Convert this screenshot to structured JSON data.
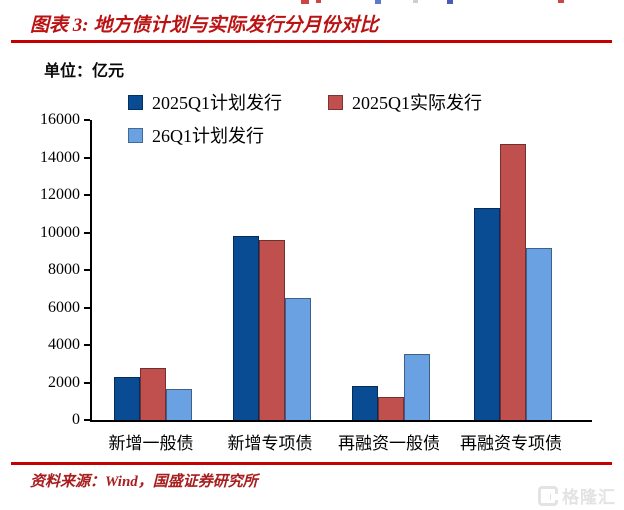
{
  "header": {
    "title": "图表 3: 地方债计划与实际发行分月份对比",
    "unit_label": "单位：亿元"
  },
  "chart_data": {
    "type": "bar",
    "title": "地方债计划与实际发行分月份对比",
    "unit": "亿元",
    "categories": [
      "新增一般债",
      "新增专项债",
      "再融资一般债",
      "再融资专项债"
    ],
    "series": [
      {
        "name": "2025Q1计划发行",
        "color": "#0a4c93",
        "values": [
          2300,
          9800,
          1800,
          11300
        ]
      },
      {
        "name": "2025Q1实际发行",
        "color": "#c0504d",
        "values": [
          2750,
          9600,
          1250,
          14700
        ]
      },
      {
        "name": "26Q1计划发行",
        "color": "#69a1e2",
        "values": [
          1650,
          6500,
          3500,
          9200
        ]
      }
    ],
    "ylim": [
      0,
      16000
    ],
    "yticks": [
      0,
      2000,
      4000,
      6000,
      8000,
      10000,
      12000,
      14000,
      16000
    ],
    "grid": false,
    "legend_position": "top",
    "legend_rows": [
      [
        0,
        1
      ],
      [
        2
      ]
    ]
  },
  "footer": {
    "source": "资料来源：Wind，国盛证券研究所",
    "watermark": "格隆汇"
  },
  "colors": {
    "title": "#bb1313",
    "rule": "#c40000",
    "source": "#a81d1d",
    "axis": "#000000",
    "watermark": "#e3e3e3"
  }
}
